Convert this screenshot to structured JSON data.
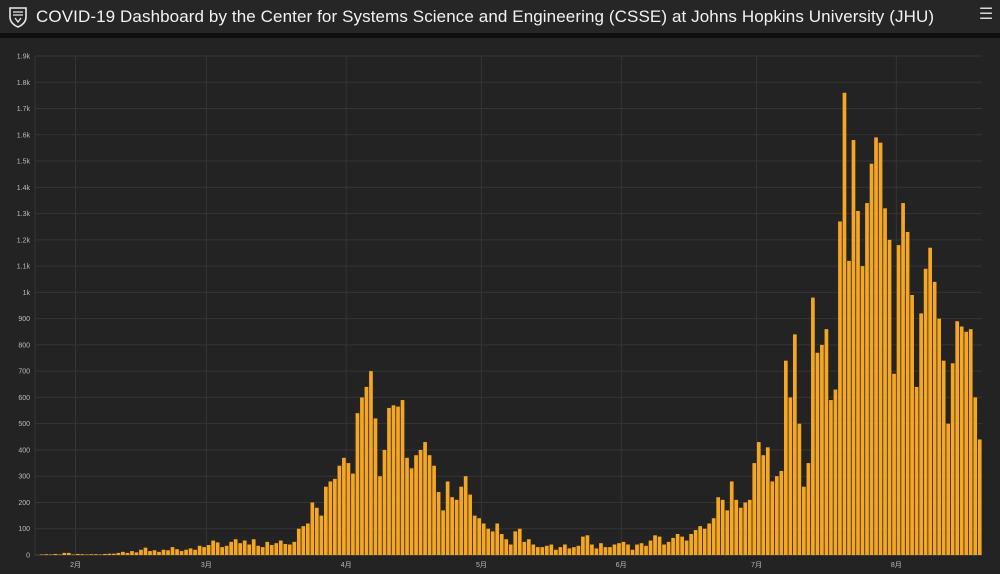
{
  "header": {
    "title": "COVID-19 Dashboard by the Center for Systems Science and Engineering (CSSE) at Johns Hopkins University (JHU)",
    "logo_icon": "jhu-shield-icon",
    "menu_icon": "hamburger-menu-icon"
  },
  "colors": {
    "background": "#232323",
    "bar": "#f5a623",
    "grid": "#353535",
    "text": "#bdbdbd"
  },
  "chart_data": {
    "type": "bar",
    "title": "",
    "xlabel": "",
    "ylabel": "",
    "ylim": [
      0,
      1900
    ],
    "y_ticks": [
      0,
      100,
      200,
      300,
      400,
      500,
      600,
      700,
      800,
      900,
      1000,
      1100,
      1200,
      1300,
      1400,
      1500,
      1600,
      1700,
      1800,
      1900
    ],
    "y_tick_labels": [
      "0",
      "100",
      "200",
      "300",
      "400",
      "500",
      "600",
      "700",
      "800",
      "900",
      "1k",
      "1.1k",
      "1.2k",
      "1.3k",
      "1.4k",
      "1.5k",
      "1.6k",
      "1.7k",
      "1.8k",
      "1.9k"
    ],
    "x_month_labels": [
      "2月",
      "3月",
      "4月",
      "5月",
      "6月",
      "7月",
      "8月"
    ],
    "x_month_start_index": [
      9,
      38,
      69,
      99,
      130,
      160,
      191
    ],
    "grid": true,
    "legend": "none",
    "series": [
      {
        "values": [
          0,
          2,
          3,
          2,
          4,
          2,
          8,
          8,
          2,
          4,
          3,
          2,
          3,
          3,
          2,
          4,
          5,
          5,
          8,
          12,
          8,
          15,
          10,
          20,
          28,
          15,
          18,
          12,
          20,
          18,
          30,
          22,
          15,
          20,
          25,
          20,
          35,
          30,
          38,
          55,
          48,
          30,
          35,
          50,
          60,
          45,
          55,
          40,
          60,
          35,
          30,
          50,
          38,
          45,
          55,
          42,
          40,
          50,
          100,
          110,
          120,
          200,
          180,
          150,
          260,
          280,
          290,
          340,
          370,
          350,
          310,
          540,
          600,
          640,
          700,
          520,
          300,
          400,
          560,
          570,
          565,
          590,
          370,
          330,
          380,
          400,
          430,
          380,
          340,
          240,
          170,
          280,
          220,
          210,
          260,
          300,
          230,
          150,
          140,
          120,
          100,
          90,
          120,
          80,
          60,
          40,
          90,
          100,
          50,
          60,
          40,
          30,
          30,
          35,
          40,
          20,
          30,
          40,
          25,
          30,
          35,
          70,
          75,
          40,
          25,
          45,
          30,
          30,
          40,
          45,
          50,
          40,
          20,
          40,
          45,
          35,
          55,
          75,
          70,
          40,
          50,
          65,
          80,
          70,
          55,
          80,
          95,
          110,
          100,
          120,
          140,
          220,
          210,
          170,
          280,
          210,
          180,
          200,
          210,
          350,
          430,
          380,
          410,
          280,
          300,
          320,
          740,
          600,
          840,
          500,
          260,
          350,
          980,
          770,
          800,
          860,
          590,
          630,
          1270,
          1760,
          1120,
          1580,
          1310,
          1100,
          1340,
          1490,
          1590,
          1570,
          1320,
          1200,
          690,
          1180,
          1340,
          1230,
          990,
          640,
          920,
          1090,
          1170,
          1040,
          900,
          740,
          500,
          730,
          890,
          870,
          850,
          860,
          600,
          440
        ]
      }
    ]
  }
}
